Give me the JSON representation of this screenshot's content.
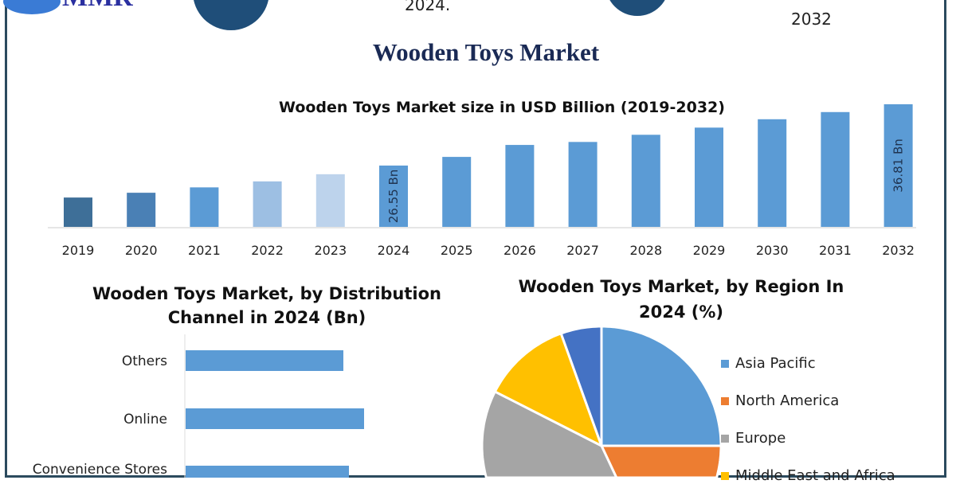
{
  "header": {
    "logo_text": "MMR",
    "top_center_text": "2024.",
    "top_right_text": "2032"
  },
  "title": "Wooden Toys Market",
  "chart_data": [
    {
      "type": "bar",
      "title": "Wooden Toys Market size in USD Billion (2019-2032)",
      "categories": [
        "2019",
        "2020",
        "2021",
        "2022",
        "2023",
        "2024",
        "2025",
        "2026",
        "2027",
        "2028",
        "2029",
        "2030",
        "2031",
        "2032"
      ],
      "values": [
        21.2,
        22.0,
        22.9,
        23.9,
        25.1,
        26.55,
        28.0,
        30.0,
        30.5,
        31.7,
        32.9,
        34.3,
        35.5,
        36.81
      ],
      "data_labels": {
        "2024": "26.55 Bn",
        "2032": "36.81 Bn"
      },
      "colors": [
        "#3e6f98",
        "#4a80b5",
        "#5b9bd5",
        "#9dbfe3",
        "#bdd3ec",
        "#5b9bd5",
        "#5b9bd5",
        "#5b9bd5",
        "#5b9bd5",
        "#5b9bd5",
        "#5b9bd5",
        "#5b9bd5",
        "#5b9bd5",
        "#5b9bd5"
      ],
      "xlabel": "",
      "ylabel": "",
      "grid": false
    },
    {
      "type": "bar",
      "orientation": "horizontal",
      "title": "Wooden Toys Market, by Distribution Channel in 2024 (Bn)",
      "categories": [
        "Others",
        "Online",
        "Convenience Stores"
      ],
      "values": [
        198,
        224,
        205
      ],
      "color": "#5b9bd5"
    },
    {
      "type": "pie",
      "title": "Wooden Toys Market, by Region In 2024 (%)",
      "legend_position": "right",
      "slices": [
        {
          "name": "Asia Pacific",
          "value": 25,
          "color": "#5b9bd5"
        },
        {
          "name": "North America",
          "value": 18,
          "color": "#ed7d31"
        },
        {
          "name": "Europe",
          "value": 39.5,
          "color": "#a5a5a5"
        },
        {
          "name": "Middle East and Africa",
          "value": 12,
          "color": "#ffc000"
        },
        {
          "value": 5.5,
          "color": "#4472c4"
        }
      ]
    }
  ]
}
